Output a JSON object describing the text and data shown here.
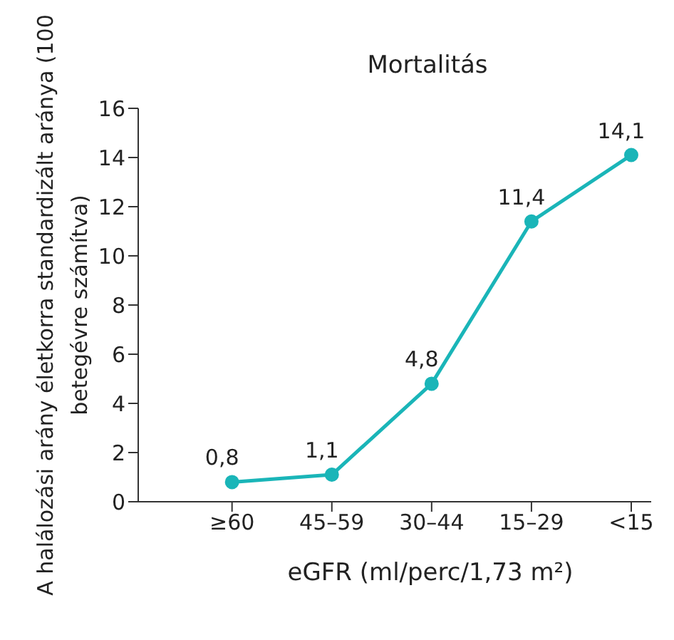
{
  "chart_data": {
    "type": "line",
    "title": "Mortalitás",
    "xlabel": "eGFR (ml/perc/1,73 m²)",
    "ylabel": "A halálozási arány életkorra standardizált aránya (100 betegévre számítva)",
    "categories": [
      "≥60",
      "45–59",
      "30–44",
      "15–29",
      "<15"
    ],
    "series": [
      {
        "color": "#1ab5b8",
        "values": [
          0.8,
          1.1,
          4.8,
          11.4,
          14.1
        ],
        "value_labels": [
          "0,8",
          "1,1",
          "4,8",
          "11,4",
          "14,1"
        ]
      }
    ],
    "ylim": [
      0,
      16
    ],
    "yticks": [
      0,
      2,
      4,
      6,
      8,
      10,
      12,
      14,
      16
    ],
    "grid": false,
    "legend": false,
    "marker": "circle",
    "line_style": "solid"
  }
}
